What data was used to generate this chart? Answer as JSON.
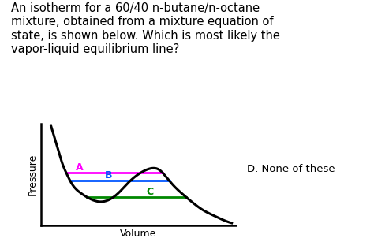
{
  "title_text": "An isotherm for a 60/40 n-butane/n-octane\nmixture, obtained from a mixture equation of\nstate, is shown below. Which is most likely the\nvapor-liquid equilibrium line?",
  "xlabel": "Volume",
  "ylabel": "Pressure",
  "annotation_D": "D. None of these",
  "line_A_label": "A",
  "line_B_label": "B",
  "line_C_label": "C",
  "color_A": "#FF00FF",
  "color_B": "#0055FF",
  "color_C": "#008800",
  "curve_color": "#000000",
  "background_color": "#FFFFFF",
  "title_fontsize": 10.5,
  "axis_label_fontsize": 9,
  "curve_x": [
    0.5,
    0.7,
    0.9,
    1.1,
    1.3,
    1.6,
    2.0,
    2.5,
    3.0,
    3.5,
    4.0,
    4.5,
    5.0,
    5.5,
    5.8,
    6.1,
    6.4,
    6.8,
    7.3,
    7.8,
    8.3,
    8.8,
    9.3,
    9.8
  ],
  "curve_y": [
    9.8,
    8.5,
    7.2,
    6.0,
    5.1,
    4.0,
    3.2,
    2.6,
    2.3,
    2.5,
    3.2,
    4.2,
    5.0,
    5.5,
    5.6,
    5.4,
    4.8,
    3.9,
    3.0,
    2.2,
    1.5,
    1.0,
    0.55,
    0.2
  ],
  "p_A": 5.15,
  "p_B": 4.35,
  "p_C": 2.75,
  "xlim": [
    0,
    10
  ],
  "ylim": [
    0,
    10
  ]
}
